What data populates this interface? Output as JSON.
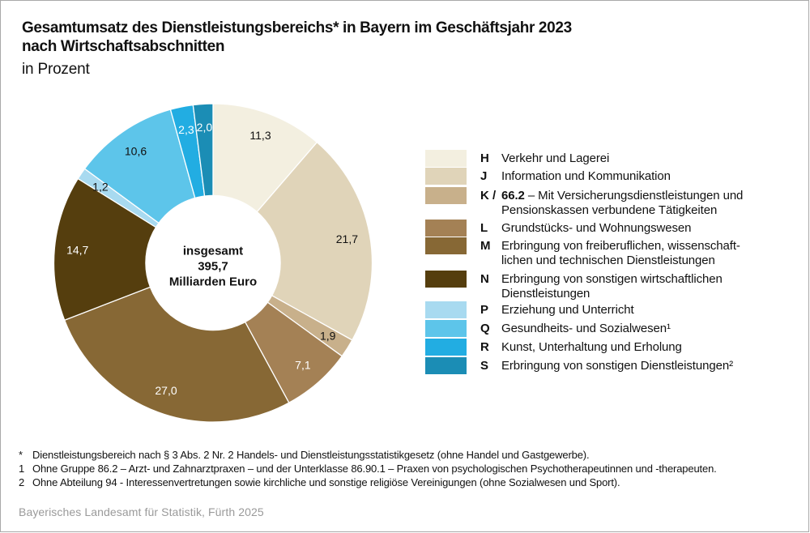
{
  "header": {
    "title_line1": "Gesamtumsatz des Dienstleistungsbereichs* in Bayern im Geschäftsjahr 2023",
    "title_line2": "nach Wirtschaftsabschnitten",
    "subtitle": "in Prozent"
  },
  "chart_data": {
    "type": "pie",
    "variant": "donut",
    "title": "Gesamtumsatz des Dienstleistungsbereichs* in Bayern im Geschäftsjahr 2023 nach Wirtschaftsabschnitten",
    "unit": "in Prozent",
    "center_label": {
      "line1": "insgesamt",
      "line2": "395,7",
      "line3": "Milliarden Euro"
    },
    "start": "12 o'clock",
    "direction": "clockwise",
    "slices": [
      {
        "code": "H",
        "value": 11.3,
        "label": "11,3",
        "color": "#f3efe0",
        "label_color": "#111111"
      },
      {
        "code": "J",
        "value": 21.7,
        "label": "21,7",
        "color": "#e0d4b9",
        "label_color": "#111111"
      },
      {
        "code": "K",
        "value": 1.9,
        "label": "1,9",
        "color": "#c8b08b",
        "label_color": "#111111"
      },
      {
        "code": "L",
        "value": 7.1,
        "label": "7,1",
        "color": "#a48155",
        "label_color": "#ffffff"
      },
      {
        "code": "M",
        "value": 27.0,
        "label": "27,0",
        "color": "#876835",
        "label_color": "#ffffff"
      },
      {
        "code": "N",
        "value": 14.7,
        "label": "14,7",
        "color": "#553e0e",
        "label_color": "#ffffff"
      },
      {
        "code": "P",
        "value": 1.2,
        "label": "1,2",
        "color": "#a8daf0",
        "label_color": "#111111"
      },
      {
        "code": "Q",
        "value": 10.6,
        "label": "10,6",
        "color": "#5dc5ea",
        "label_color": "#111111"
      },
      {
        "code": "R",
        "value": 2.3,
        "label": "2,3",
        "color": "#22ade2",
        "label_color": "#ffffff"
      },
      {
        "code": "S",
        "value": 2.0,
        "label": "2,0",
        "color": "#1b8db5",
        "label_color": "#ffffff"
      }
    ],
    "legend": [
      {
        "code": "H",
        "text": "Verkehr und Lagerei",
        "color": "#f3efe0"
      },
      {
        "code": "J",
        "text": "Information und Kommunikation",
        "color": "#e0d4b9"
      },
      {
        "code": "K /",
        "bold_prefix": "66.2",
        "text": " – Mit Versicherungsdienstleistungen und",
        "text2": "Pensionskassen verbundene Tätigkeiten",
        "color": "#c8b08b"
      },
      {
        "code": "L",
        "text": "Grundstücks- und Wohnungswesen",
        "color": "#a48155"
      },
      {
        "code": "M",
        "text": "Erbringung von freiberuflichen, wissenschaft-",
        "text2": "lichen und technischen Dienstleistungen",
        "color": "#876835"
      },
      {
        "code": "N",
        "text": "Erbringung von sonstigen wirtschaftlichen",
        "text2": "Dienstleistungen",
        "color": "#553e0e"
      },
      {
        "code": "P",
        "text": "Erziehung und Unterricht",
        "color": "#a8daf0"
      },
      {
        "code": "Q",
        "text": "Gesundheits- und Sozialwesen¹",
        "color": "#5dc5ea"
      },
      {
        "code": "R",
        "text": "Kunst, Unterhaltung und Erholung",
        "color": "#22ade2"
      },
      {
        "code": "S",
        "text": "Erbringung von sonstigen Dienstleistungen²",
        "color": "#1b8db5"
      }
    ],
    "legend_placement": "right"
  },
  "footnotes": [
    {
      "mark": "*",
      "text": "Dienstleistungsbereich nach § 3 Abs. 2 Nr. 2 Handels- und Dienstleistungsstatistikgesetz (ohne Handel und Gastgewerbe)."
    },
    {
      "mark": "1",
      "text": "Ohne Gruppe 86.2 – Arzt- und Zahnarztpraxen – und der Unterklasse 86.90.1 – Praxen von psychologischen Psychotherapeutinnen und -therapeuten."
    },
    {
      "mark": "2",
      "text": "Ohne Abteilung 94 - Interessenvertretungen sowie kirchliche und sonstige religiöse Vereinigungen (ohne Sozialwesen und Sport)."
    }
  ],
  "source": "Bayerisches Landesamt für Statistik, Fürth 2025"
}
